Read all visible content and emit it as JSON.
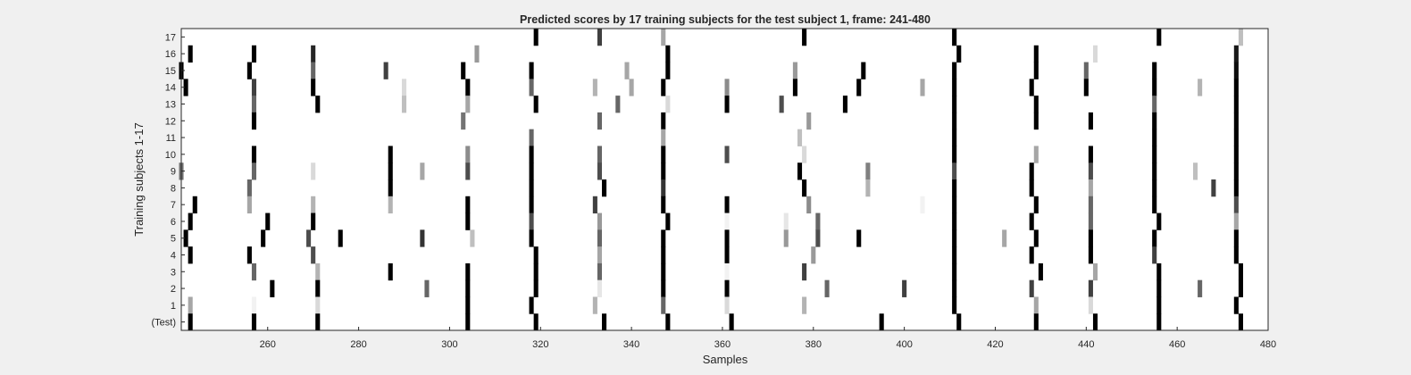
{
  "chart_data": {
    "type": "heatmap",
    "title": "Predicted scores by 17 training subjects for the test subject 1, frame: 241-480",
    "xlabel": "Samples",
    "ylabel": "Training subjects 1-17",
    "xlim": [
      241,
      480
    ],
    "x_ticks": [
      260,
      280,
      300,
      320,
      340,
      360,
      380,
      400,
      420,
      440,
      460,
      480
    ],
    "row_labels": [
      "17",
      "16",
      "15",
      "14",
      "13",
      "12",
      "11",
      "10",
      "9",
      "8",
      "7",
      "6",
      "5",
      "4",
      "3",
      "2",
      "1",
      "(Test)"
    ],
    "background_color": "#ffffff",
    "frame_color": "#262626",
    "colormap": "gray-inverted",
    "value_range": [
      0,
      1
    ],
    "marks": [
      {
        "row": "17",
        "cells": [
          [
            319,
            1.0
          ],
          [
            333,
            0.75
          ],
          [
            347,
            0.35
          ],
          [
            378,
            1.0
          ],
          [
            411,
            1.0
          ],
          [
            456,
            1.0
          ],
          [
            474,
            0.25
          ]
        ]
      },
      {
        "row": "16",
        "cells": [
          [
            243,
            1.0
          ],
          [
            257,
            1.0
          ],
          [
            270,
            0.85
          ],
          [
            306,
            0.4
          ],
          [
            348,
            1.0
          ],
          [
            412,
            1.0
          ],
          [
            429,
            1.0
          ],
          [
            442,
            0.15
          ],
          [
            473,
            0.9
          ]
        ]
      },
      {
        "row": "15",
        "cells": [
          [
            241,
            1.0
          ],
          [
            256,
            1.0
          ],
          [
            270,
            0.6
          ],
          [
            286,
            0.75
          ],
          [
            303,
            1.0
          ],
          [
            318,
            1.0
          ],
          [
            339,
            0.35
          ],
          [
            348,
            1.0
          ],
          [
            376,
            0.4
          ],
          [
            391,
            1.0
          ],
          [
            411,
            1.0
          ],
          [
            429,
            1.0
          ],
          [
            440,
            0.6
          ],
          [
            455,
            1.0
          ],
          [
            473,
            0.95
          ]
        ]
      },
      {
        "row": "14",
        "cells": [
          [
            242,
            1.0
          ],
          [
            257,
            0.75
          ],
          [
            270,
            1.0
          ],
          [
            290,
            0.15
          ],
          [
            304,
            1.0
          ],
          [
            318,
            0.6
          ],
          [
            332,
            0.3
          ],
          [
            340,
            0.35
          ],
          [
            347,
            1.0
          ],
          [
            361,
            0.45
          ],
          [
            376,
            1.0
          ],
          [
            390,
            1.0
          ],
          [
            404,
            0.35
          ],
          [
            411,
            1.0
          ],
          [
            428,
            1.0
          ],
          [
            440,
            1.0
          ],
          [
            455,
            1.0
          ],
          [
            465,
            0.3
          ],
          [
            473,
            1.0
          ]
        ]
      },
      {
        "row": "13",
        "cells": [
          [
            257,
            0.6
          ],
          [
            271,
            1.0
          ],
          [
            290,
            0.25
          ],
          [
            304,
            0.35
          ],
          [
            319,
            1.0
          ],
          [
            337,
            0.6
          ],
          [
            348,
            0.15
          ],
          [
            361,
            1.0
          ],
          [
            373,
            0.7
          ],
          [
            387,
            1.0
          ],
          [
            411,
            1.0
          ],
          [
            429,
            1.0
          ],
          [
            455,
            0.6
          ],
          [
            473,
            1.0
          ]
        ]
      },
      {
        "row": "12",
        "cells": [
          [
            257,
            1.0
          ],
          [
            303,
            0.55
          ],
          [
            333,
            0.6
          ],
          [
            347,
            1.0
          ],
          [
            379,
            0.4
          ],
          [
            411,
            1.0
          ],
          [
            429,
            1.0
          ],
          [
            441,
            1.0
          ],
          [
            455,
            1.0
          ],
          [
            473,
            1.0
          ]
        ]
      },
      {
        "row": "11",
        "cells": [
          [
            318,
            0.6
          ],
          [
            347,
            0.35
          ],
          [
            377,
            0.25
          ],
          [
            411,
            1.0
          ],
          [
            455,
            1.0
          ],
          [
            473,
            1.0
          ]
        ]
      },
      {
        "row": "10",
        "cells": [
          [
            257,
            1.0
          ],
          [
            287,
            1.0
          ],
          [
            304,
            0.45
          ],
          [
            318,
            1.0
          ],
          [
            333,
            0.6
          ],
          [
            347,
            1.0
          ],
          [
            361,
            0.7
          ],
          [
            378,
            0.15
          ],
          [
            411,
            1.0
          ],
          [
            429,
            0.35
          ],
          [
            441,
            1.0
          ],
          [
            455,
            1.0
          ],
          [
            473,
            1.0
          ]
        ]
      },
      {
        "row": "9",
        "cells": [
          [
            241,
            0.55
          ],
          [
            257,
            0.6
          ],
          [
            270,
            0.15
          ],
          [
            287,
            1.0
          ],
          [
            294,
            0.35
          ],
          [
            304,
            0.7
          ],
          [
            318,
            1.0
          ],
          [
            333,
            0.7
          ],
          [
            347,
            1.0
          ],
          [
            377,
            1.0
          ],
          [
            392,
            0.5
          ],
          [
            411,
            0.7
          ],
          [
            428,
            1.0
          ],
          [
            441,
            0.7
          ],
          [
            455,
            1.0
          ],
          [
            464,
            0.25
          ],
          [
            473,
            1.0
          ]
        ]
      },
      {
        "row": "8",
        "cells": [
          [
            256,
            0.6
          ],
          [
            287,
            1.0
          ],
          [
            318,
            1.0
          ],
          [
            334,
            1.0
          ],
          [
            347,
            0.8
          ],
          [
            378,
            1.0
          ],
          [
            392,
            0.3
          ],
          [
            411,
            1.0
          ],
          [
            428,
            1.0
          ],
          [
            441,
            0.35
          ],
          [
            455,
            1.0
          ],
          [
            468,
            0.75
          ],
          [
            473,
            1.0
          ]
        ]
      },
      {
        "row": "7",
        "cells": [
          [
            244,
            1.0
          ],
          [
            256,
            0.35
          ],
          [
            270,
            0.3
          ],
          [
            287,
            0.3
          ],
          [
            304,
            1.0
          ],
          [
            318,
            1.0
          ],
          [
            332,
            0.75
          ],
          [
            347,
            1.0
          ],
          [
            361,
            1.0
          ],
          [
            379,
            0.45
          ],
          [
            404,
            0.05
          ],
          [
            411,
            1.0
          ],
          [
            429,
            1.0
          ],
          [
            441,
            0.6
          ],
          [
            455,
            1.0
          ],
          [
            473,
            0.7
          ]
        ]
      },
      {
        "row": "6",
        "cells": [
          [
            243,
            1.0
          ],
          [
            260,
            1.0
          ],
          [
            270,
            1.0
          ],
          [
            304,
            1.0
          ],
          [
            318,
            0.7
          ],
          [
            333,
            0.4
          ],
          [
            348,
            1.0
          ],
          [
            361,
            0.05
          ],
          [
            374,
            0.1
          ],
          [
            381,
            0.6
          ],
          [
            411,
            1.0
          ],
          [
            428,
            1.0
          ],
          [
            441,
            0.6
          ],
          [
            456,
            1.0
          ],
          [
            473,
            0.35
          ]
        ]
      },
      {
        "row": "5",
        "cells": [
          [
            242,
            1.0
          ],
          [
            259,
            1.0
          ],
          [
            269,
            0.7
          ],
          [
            276,
            1.0
          ],
          [
            294,
            0.8
          ],
          [
            305,
            0.25
          ],
          [
            318,
            1.0
          ],
          [
            333,
            0.6
          ],
          [
            347,
            1.0
          ],
          [
            361,
            1.0
          ],
          [
            374,
            0.4
          ],
          [
            381,
            0.7
          ],
          [
            390,
            1.0
          ],
          [
            411,
            1.0
          ],
          [
            422,
            0.35
          ],
          [
            429,
            1.0
          ],
          [
            441,
            1.0
          ],
          [
            455,
            1.0
          ],
          [
            473,
            1.0
          ]
        ]
      },
      {
        "row": "4",
        "cells": [
          [
            243,
            1.0
          ],
          [
            256,
            1.0
          ],
          [
            270,
            0.7
          ],
          [
            319,
            1.0
          ],
          [
            333,
            0.35
          ],
          [
            347,
            1.0
          ],
          [
            361,
            1.0
          ],
          [
            380,
            0.4
          ],
          [
            411,
            1.0
          ],
          [
            428,
            1.0
          ],
          [
            441,
            1.0
          ],
          [
            455,
            0.75
          ],
          [
            473,
            1.0
          ]
        ]
      },
      {
        "row": "3",
        "cells": [
          [
            257,
            0.6
          ],
          [
            271,
            0.3
          ],
          [
            287,
            1.0
          ],
          [
            304,
            1.0
          ],
          [
            319,
            1.0
          ],
          [
            333,
            0.6
          ],
          [
            347,
            1.0
          ],
          [
            361,
            0.05
          ],
          [
            378,
            0.75
          ],
          [
            411,
            1.0
          ],
          [
            430,
            1.0
          ],
          [
            442,
            0.35
          ],
          [
            456,
            1.0
          ],
          [
            474,
            1.0
          ]
        ]
      },
      {
        "row": "2",
        "cells": [
          [
            261,
            1.0
          ],
          [
            271,
            1.0
          ],
          [
            295,
            0.6
          ],
          [
            304,
            1.0
          ],
          [
            319,
            1.0
          ],
          [
            333,
            0.1
          ],
          [
            347,
            1.0
          ],
          [
            361,
            1.0
          ],
          [
            383,
            0.6
          ],
          [
            400,
            0.75
          ],
          [
            411,
            1.0
          ],
          [
            428,
            0.75
          ],
          [
            441,
            0.75
          ],
          [
            456,
            1.0
          ],
          [
            465,
            0.6
          ],
          [
            474,
            1.0
          ]
        ]
      },
      {
        "row": "1",
        "cells": [
          [
            243,
            0.35
          ],
          [
            257,
            0.05
          ],
          [
            271,
            0.15
          ],
          [
            304,
            1.0
          ],
          [
            318,
            1.0
          ],
          [
            332,
            0.3
          ],
          [
            347,
            0.6
          ],
          [
            361,
            0.15
          ],
          [
            378,
            0.3
          ],
          [
            411,
            1.0
          ],
          [
            429,
            0.35
          ],
          [
            441,
            0.15
          ],
          [
            456,
            1.0
          ],
          [
            473,
            1.0
          ]
        ]
      },
      {
        "row": "(Test)",
        "cells": [
          [
            243,
            1.0
          ],
          [
            257,
            1.0
          ],
          [
            271,
            1.0
          ],
          [
            304,
            1.0
          ],
          [
            319,
            1.0
          ],
          [
            334,
            1.0
          ],
          [
            348,
            1.0
          ],
          [
            362,
            1.0
          ],
          [
            395,
            1.0
          ],
          [
            412,
            1.0
          ],
          [
            429,
            1.0
          ],
          [
            442,
            1.0
          ],
          [
            456,
            1.0
          ],
          [
            474,
            1.0
          ]
        ]
      }
    ]
  }
}
